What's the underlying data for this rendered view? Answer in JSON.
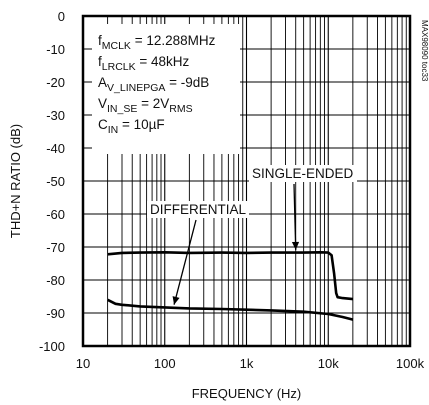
{
  "chart_data": {
    "type": "line",
    "title": "",
    "xlabel": "FREQUENCY (Hz)",
    "ylabel": "THD+N RATIO (dB)",
    "x_scale": "log",
    "xlim": [
      10,
      100000
    ],
    "ylim": [
      -100,
      0
    ],
    "x_ticks": [
      {
        "value": 10,
        "label": "10"
      },
      {
        "value": 100,
        "label": "100"
      },
      {
        "value": 1000,
        "label": "1k"
      },
      {
        "value": 10000,
        "label": "10k"
      },
      {
        "value": 100000,
        "label": "100k"
      }
    ],
    "y_ticks": [
      {
        "value": 0,
        "label": "0"
      },
      {
        "value": -10,
        "label": "-10"
      },
      {
        "value": -20,
        "label": "-20"
      },
      {
        "value": -30,
        "label": "-30"
      },
      {
        "value": -40,
        "label": "-40"
      },
      {
        "value": -50,
        "label": "-50"
      },
      {
        "value": -60,
        "label": "-60"
      },
      {
        "value": -70,
        "label": "-70"
      },
      {
        "value": -80,
        "label": "-80"
      },
      {
        "value": -90,
        "label": "-90"
      },
      {
        "value": -100,
        "label": "-100"
      }
    ],
    "grid": true,
    "conditions": [
      {
        "label": "f",
        "sub": "MCLK",
        "value": " = 12.288MHz"
      },
      {
        "label": "f",
        "sub": "LRCLK",
        "value": " = 48kHz"
      },
      {
        "label": "A",
        "sub": "V_LINEPGA",
        "value": " = -9dB"
      },
      {
        "label": "V",
        "sub": "IN_SE",
        "value": " = 2V",
        "sub2": "RMS"
      },
      {
        "label": "C",
        "sub": "IN",
        "value": " = 10µF"
      }
    ],
    "figure_code": "MAX98090 toc33",
    "series": [
      {
        "name": "SINGLE-ENDED",
        "x": [
          20,
          30,
          50,
          100,
          200,
          500,
          1000,
          2000,
          5000,
          8000,
          10000,
          11000,
          11800,
          12500,
          13000,
          15000,
          20000
        ],
        "y": [
          -72.2,
          -71.8,
          -71.7,
          -71.6,
          -71.8,
          -71.7,
          -71.8,
          -71.7,
          -71.7,
          -71.6,
          -71.7,
          -72.5,
          -78,
          -84,
          -85.2,
          -85.5,
          -85.8
        ]
      },
      {
        "name": "DIFFERENTIAL",
        "x": [
          20,
          25,
          30,
          50,
          100,
          200,
          500,
          1000,
          2000,
          5000,
          10000,
          15000,
          20000
        ],
        "y": [
          -86.0,
          -87.2,
          -87.5,
          -88.0,
          -88.3,
          -88.6,
          -88.8,
          -89.0,
          -89.2,
          -89.6,
          -90.3,
          -91.2,
          -92.0
        ]
      }
    ],
    "annotations": [
      {
        "text": "SINGLE-ENDED",
        "target_series": "SINGLE-ENDED",
        "target": {
          "x": 4000,
          "y": -71.8
        }
      },
      {
        "text": "DIFFERENTIAL",
        "target_series": "DIFFERENTIAL",
        "target": {
          "x": 130,
          "y": -88.4
        }
      }
    ]
  }
}
